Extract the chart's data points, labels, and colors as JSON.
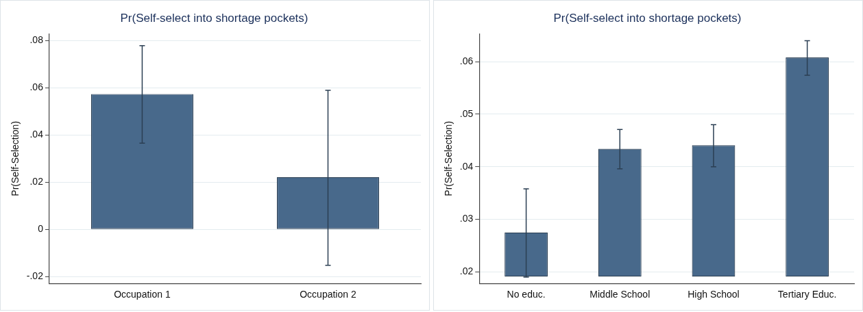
{
  "chart_data": [
    {
      "type": "bar",
      "title": "Pr(Self-select into shortage pockets)",
      "ylabel": "Pr(Self-Selection)",
      "categories": [
        "Occupation 1",
        "Occupation 2"
      ],
      "values": [
        0.0573,
        0.0221
      ],
      "errors": [
        [
          0.0365,
          0.0778
        ],
        [
          -0.0152,
          0.0589
        ]
      ],
      "color": "#48698b",
      "ylim": [
        -0.0229,
        0.0828
      ],
      "yticks": [
        {
          "value": -0.02,
          "label": "-.02"
        },
        0,
        {
          "value": 0.02,
          "label": ".02"
        },
        {
          "value": 0.04,
          "label": ".04"
        },
        {
          "value": 0.06,
          "label": ".06"
        },
        {
          "value": 0.08,
          "label": ".08"
        }
      ],
      "grid": "y",
      "legend": false
    },
    {
      "type": "bar",
      "title": "Pr(Self-select into shortage pockets)",
      "ylabel": "Pr(Self-Selection)",
      "categories": [
        "No educ.",
        "Middle School",
        "High School",
        "Tertiary Educ."
      ],
      "base": [
        0.0191,
        0.0191,
        0.0191,
        0.0191
      ],
      "values": [
        0.0084,
        0.0243,
        0.025,
        0.0417
      ],
      "errors": [
        [
          0.019,
          0.0358
        ],
        [
          0.0396,
          0.0471
        ],
        [
          0.04,
          0.048
        ],
        [
          0.0574,
          0.064
        ]
      ],
      "color": "#48698b",
      "ylim": [
        0.0178,
        0.0653
      ],
      "yticks": [
        {
          "value": 0.02,
          "label": ".02"
        },
        {
          "value": 0.03,
          "label": ".03"
        },
        {
          "value": 0.04,
          "label": ".04"
        },
        {
          "value": 0.05,
          "label": ".05"
        },
        {
          "value": 0.06,
          "label": ".06"
        }
      ],
      "grid": "y",
      "legend": false
    }
  ]
}
